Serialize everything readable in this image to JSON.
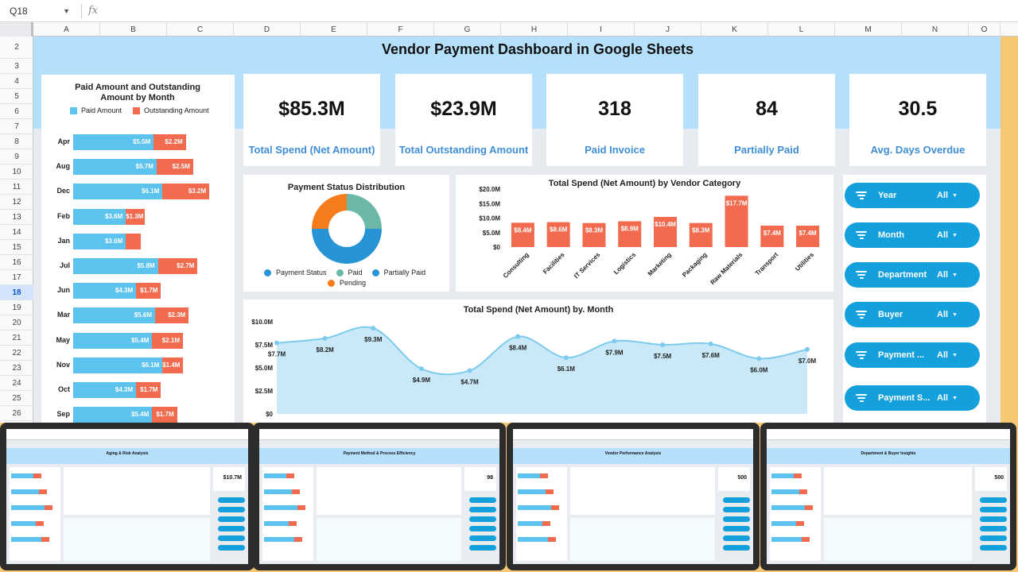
{
  "formula_bar": {
    "cell_ref": "Q18",
    "fx": "fx"
  },
  "columns": [
    "A",
    "B",
    "C",
    "D",
    "E",
    "F",
    "G",
    "H",
    "I",
    "J",
    "K",
    "L",
    "M",
    "N",
    "O"
  ],
  "rows": [
    "2",
    "3",
    "4",
    "5",
    "6",
    "7",
    "8",
    "9",
    "10",
    "11",
    "12",
    "13",
    "14",
    "15",
    "16",
    "17",
    "18",
    "19",
    "20",
    "21",
    "22",
    "23",
    "24",
    "25",
    "26",
    "27",
    "28"
  ],
  "active_row": "18",
  "dashboard": {
    "title": "Vendor Payment Dashboard in Google Sheets",
    "kpis": [
      {
        "value": "$85.3M",
        "label": "Total Spend (Net Amount)"
      },
      {
        "value": "$23.9M",
        "label": "Total Outstanding Amount"
      },
      {
        "value": "318",
        "label": "Paid Invoice"
      },
      {
        "value": "84",
        "label": "Partially Paid"
      },
      {
        "value": "30.5",
        "label": "Avg. Days Overdue"
      }
    ],
    "slicers": [
      {
        "label": "Year",
        "value": "All"
      },
      {
        "label": "Month",
        "value": "All"
      },
      {
        "label": "Department",
        "value": "All"
      },
      {
        "label": "Buyer",
        "value": "All"
      },
      {
        "label": "Payment ...",
        "value": "All"
      },
      {
        "label": "Payment S...",
        "value": "All"
      }
    ]
  },
  "colors": {
    "paid": "#5bc3ee",
    "outstanding": "#f26b4f",
    "slicer": "#14a0dc",
    "kpi_label": "#3f8ed3",
    "area": "#c9e9f8",
    "line": "#7ccbee",
    "donut_orange": "#f47c1a",
    "donut_teal": "#6cb8a8",
    "donut_blue": "#2794d6"
  },
  "chart_data": [
    {
      "type": "bar",
      "orientation": "horizontal-stacked",
      "title": "Paid Amount and  Outstanding Amount by Month",
      "legend": [
        "Paid Amount",
        "Outstanding Amount"
      ],
      "categories": [
        "Apr",
        "Aug",
        "Dec",
        "Feb",
        "Jan",
        "Jul",
        "Jun",
        "Mar",
        "May",
        "Nov",
        "Oct",
        "Sep"
      ],
      "series": [
        {
          "name": "Paid Amount",
          "values": [
            5.5,
            5.7,
            6.1,
            3.6,
            3.6,
            5.8,
            4.3,
            5.6,
            5.4,
            6.1,
            4.3,
            5.4
          ],
          "labels": [
            "$5.5M",
            "$5.7M",
            "$6.1M",
            "$3.6M",
            "$3.6M",
            "$5.8M",
            "$4.3M",
            "$5.6M",
            "$5.4M",
            "$6.1M",
            "$4.3M",
            "$5.4M"
          ]
        },
        {
          "name": "Outstanding Amount",
          "values": [
            2.2,
            2.5,
            3.2,
            1.3,
            1.0,
            2.7,
            1.7,
            2.3,
            2.1,
            1.4,
            1.7,
            1.7
          ],
          "labels": [
            "$2.2M",
            "$2.5M",
            "$3.2M",
            "$1.3M",
            "",
            "$2.7M",
            "$1.7M",
            "$2.3M",
            "$2.1M",
            "$1.4M",
            "$1.7M",
            "$1.7M"
          ]
        }
      ]
    },
    {
      "type": "pie",
      "title": "Payment Status Distribution",
      "legend": [
        "Payment Status",
        "Paid",
        "Partially Paid",
        "Pending"
      ],
      "slices": [
        {
          "name": "Paid",
          "value": 25
        },
        {
          "name": "Partially Paid",
          "value": 50
        },
        {
          "name": "Pending",
          "value": 25
        }
      ]
    },
    {
      "type": "bar",
      "title": "Total Spend (Net Amount) by Vendor Category",
      "categories": [
        "Consulting",
        "Facilities",
        "IT Services",
        "Logistics",
        "Marketing",
        "Packaging",
        "Raw Materials",
        "Transport",
        "Utilities"
      ],
      "values": [
        8.4,
        8.6,
        8.3,
        8.9,
        10.4,
        8.3,
        17.7,
        7.4,
        7.4
      ],
      "labels": [
        "$8.4M",
        "$8.6M",
        "$8.3M",
        "$8.9M",
        "$10.4M",
        "$8.3M",
        "$17.7M",
        "$7.4M",
        "$7.4M"
      ],
      "yticks": [
        "$20.0M",
        "$15.0M",
        "$10.0M",
        "$5.0M",
        "$0"
      ],
      "ylim": [
        0,
        20
      ]
    },
    {
      "type": "area",
      "title": "Total Spend (Net Amount) by. Month",
      "categories": [
        "Apr",
        "Aug",
        "Dec",
        "Feb",
        "Jan",
        "Jul",
        "Jun",
        "Mar",
        "May",
        "Nov",
        "Oct",
        "Sep"
      ],
      "values": [
        7.7,
        8.2,
        9.3,
        4.9,
        4.7,
        8.4,
        6.1,
        7.9,
        7.5,
        7.6,
        6.0,
        7.0
      ],
      "labels": [
        "$7.7M",
        "$8.2M",
        "$9.3M",
        "$4.9M",
        "$4.7M",
        "$8.4M",
        "$6.1M",
        "$7.9M",
        "$7.5M",
        "$7.6M",
        "$6.0M",
        "$7.0M"
      ],
      "yticks": [
        "$10.0M",
        "$7.5M",
        "$5.0M",
        "$2.5M",
        "$0"
      ],
      "ylim": [
        0,
        10
      ]
    }
  ],
  "thumbnails": [
    {
      "title": "Aging & Risk Analysis",
      "kpi": "$10.7M"
    },
    {
      "title": "Payment Method & Process Efficiency",
      "kpi": "98"
    },
    {
      "title": "Vendor Performance Analysis",
      "kpi": "500"
    },
    {
      "title": "Department & Buyer Insights",
      "kpi": "500"
    }
  ]
}
